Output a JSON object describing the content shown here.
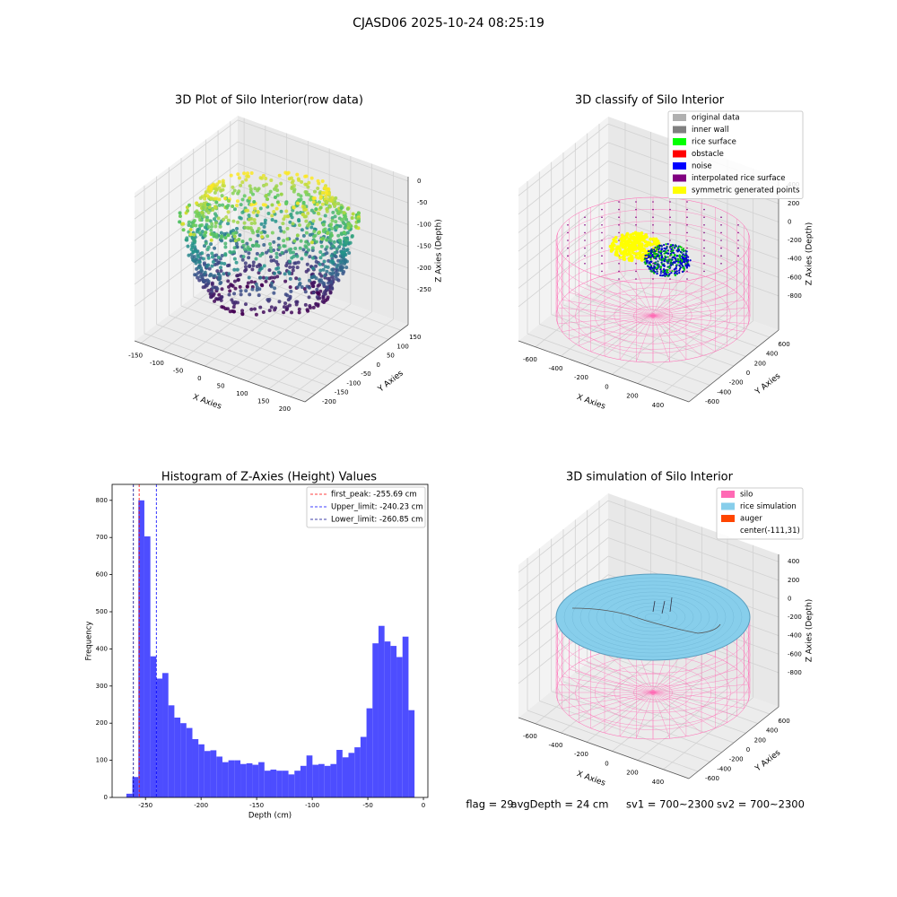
{
  "title": "CJASD06 2025-10-24 08:25:19",
  "chart_data": [
    {
      "type": "scatter3d",
      "title": "3D Plot of Silo Interior(row data)",
      "xlabel": "X Axies",
      "ylabel": "Y Axies",
      "zlabel": "Z Axies (Depth)",
      "xlim": [
        -165,
        235
      ],
      "xticks": [
        -150,
        -100,
        -50,
        0,
        50,
        100,
        150,
        200
      ],
      "ylim": [
        -240,
        180
      ],
      "yticks": [
        -200,
        -150,
        -100,
        -50,
        0,
        50,
        100,
        150
      ],
      "zlim": [
        -330,
        10
      ],
      "zticks": [
        -250,
        -200,
        -150,
        -100,
        -50,
        0
      ],
      "grid": true
    },
    {
      "type": "wireframe3d",
      "title": "3D classify of Silo Interior",
      "xlabel": "X Axies",
      "ylabel": "Y Axies",
      "zlabel": "Z Axies (Depth)",
      "xlim": [
        -733,
        600
      ],
      "xticks": [
        -600,
        -400,
        -200,
        0,
        200,
        400
      ],
      "ylim": [
        -750,
        750
      ],
      "yticks": [
        -600,
        -400,
        -200,
        0,
        200,
        400,
        600
      ],
      "zlim": [
        -1170,
        480
      ],
      "zticks": [
        -800,
        -600,
        -400,
        -200,
        0,
        200,
        400
      ],
      "grid": true,
      "legend_position": "upper right",
      "legend": [
        {
          "name": "original data",
          "color": "#b0b0b0"
        },
        {
          "name": "inner wall",
          "color": "#808080"
        },
        {
          "name": "rice surface",
          "color": "#00ff00"
        },
        {
          "name": "obstacle",
          "color": "#ff0000"
        },
        {
          "name": "noise",
          "color": "#0000ff"
        },
        {
          "name": "interpolated rice surface",
          "color": "#800080"
        },
        {
          "name": "symmetric generated points",
          "color": "#ffff00"
        }
      ]
    },
    {
      "type": "histogram",
      "title": "Histogram of Z-Axies (Height) Values",
      "xlabel": "Depth (cm)",
      "ylabel": "Frequency",
      "color": "#4d4dff",
      "bins": [
        -267.2,
        -261.8,
        -256.4,
        -251.0,
        -245.6,
        -240.2,
        -234.8,
        -229.4,
        -224.0,
        -218.6,
        -213.2,
        -207.8,
        -202.4,
        -197.0,
        -191.6,
        -186.2,
        -180.8,
        -175.4,
        -170.0,
        -164.6,
        -159.2,
        -153.8,
        -148.4,
        -143.0,
        -137.6,
        -132.2,
        -126.8,
        -121.4,
        -116.0,
        -110.6,
        -105.2,
        -99.8,
        -94.4,
        -89.0,
        -83.6,
        -78.2,
        -72.8,
        -67.4,
        -62.0,
        -56.6,
        -51.2,
        -45.8,
        -40.4,
        -35.0,
        -29.6,
        -24.2,
        -18.8,
        -13.4,
        -8.0
      ],
      "values": [
        10,
        55,
        800,
        703,
        380,
        320,
        335,
        248,
        215,
        200,
        187,
        157,
        143,
        125,
        127,
        110,
        95,
        100,
        100,
        90,
        92,
        88,
        95,
        72,
        75,
        72,
        72,
        62,
        72,
        85,
        113,
        88,
        90,
        85,
        90,
        128,
        108,
        120,
        135,
        163,
        240,
        415,
        462,
        420,
        408,
        378,
        433,
        235
      ],
      "xlim": [
        -280,
        4
      ],
      "xticks": [
        -250,
        -200,
        -150,
        -100,
        -50,
        0
      ],
      "ylim": [
        0,
        843
      ],
      "yticks": [
        0,
        100,
        200,
        300,
        400,
        500,
        600,
        700,
        800
      ],
      "legend_position": "upper right",
      "vlines": [
        {
          "name": "first_peak: -255.69 cm",
          "value": -255.69,
          "color": "#ff0000"
        },
        {
          "name": "Upper_limit: -240.23 cm",
          "value": -240.23,
          "color": "#0000ff"
        },
        {
          "name": "Lower_limit: -260.85 cm",
          "value": -260.85,
          "color": "#00008b"
        }
      ]
    },
    {
      "type": "wireframe3d",
      "title": "3D simulation of Silo Interior",
      "xlabel": "X Axies",
      "ylabel": "Y Axies",
      "zlabel": "Z Axies (Depth)",
      "xlim": [
        -733,
        600
      ],
      "xticks": [
        -600,
        -400,
        -200,
        0,
        200,
        400
      ],
      "ylim": [
        -750,
        750
      ],
      "yticks": [
        -600,
        -400,
        -200,
        0,
        200,
        400,
        600
      ],
      "zlim": [
        -1170,
        480
      ],
      "zticks": [
        -800,
        -600,
        -400,
        -200,
        0,
        200,
        400
      ],
      "grid": true,
      "legend_position": "upper right",
      "legend": [
        {
          "name": "silo",
          "color": "#ff69b4"
        },
        {
          "name": "rice simulation",
          "color": "#87ceeb"
        },
        {
          "name": "auger",
          "color": "#ff4500"
        },
        {
          "name": "center(-111,31)"
        }
      ]
    }
  ],
  "footer": [
    "flag = 29",
    "avgDepth = 24 cm",
    "sv1 = 700~2300",
    "sv2 = 700~2300"
  ]
}
